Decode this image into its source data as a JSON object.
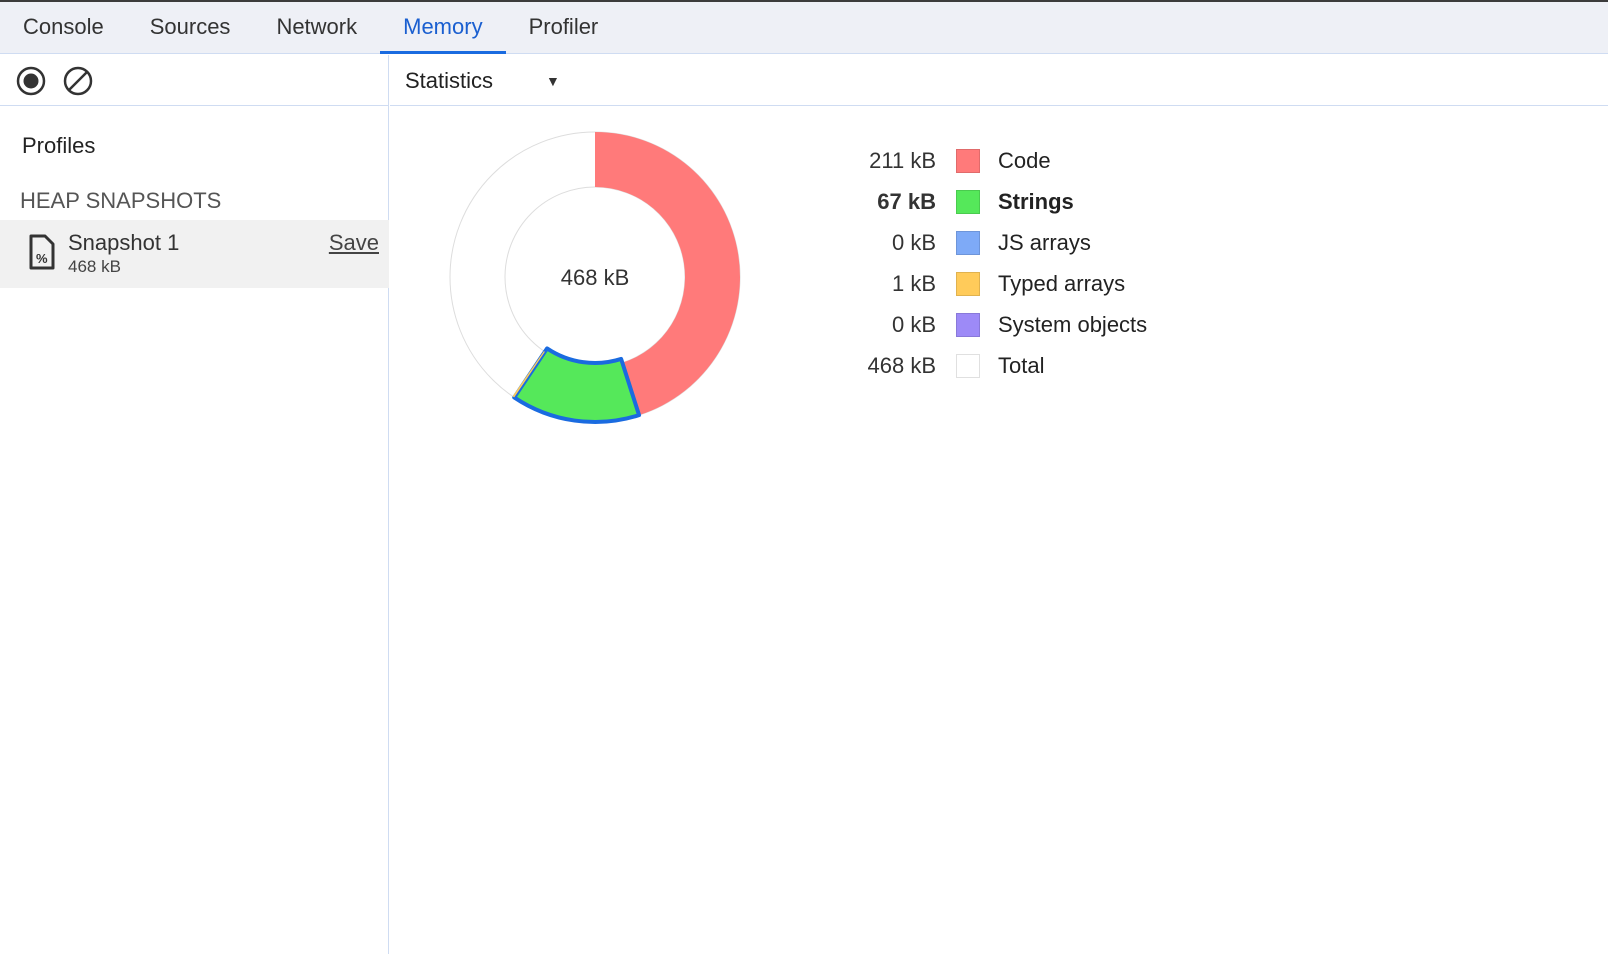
{
  "tabs": [
    {
      "label": "Console"
    },
    {
      "label": "Sources"
    },
    {
      "label": "Network"
    },
    {
      "label": "Memory",
      "active": true
    },
    {
      "label": "Profiler"
    }
  ],
  "toolbar": {
    "record_icon": "record-icon",
    "clear_icon": "clear-icon"
  },
  "sidebar": {
    "profiles_label": "Profiles",
    "section": "HEAP SNAPSHOTS",
    "snapshot": {
      "name": "Snapshot 1",
      "size": "468 kB",
      "save": "Save",
      "icon": "heap-snapshot-file-icon"
    }
  },
  "view": {
    "selected": "Statistics"
  },
  "chart_data": {
    "type": "pie",
    "donut": true,
    "center_label": "468 kB",
    "total": 468,
    "unit": "kB",
    "highlighted": "Strings",
    "series": [
      {
        "name": "Code",
        "value": 211,
        "label": "211 kB",
        "color": "#ff7a7a"
      },
      {
        "name": "Strings",
        "value": 67,
        "label": "67 kB",
        "color": "#55e85a"
      },
      {
        "name": "JS arrays",
        "value": 0,
        "label": "0 kB",
        "color": "#7eaaf7"
      },
      {
        "name": "Typed arrays",
        "value": 1,
        "label": "1 kB",
        "color": "#ffcb5a"
      },
      {
        "name": "System objects",
        "value": 0,
        "label": "0 kB",
        "color": "#9d8af7"
      }
    ],
    "total_row": {
      "name": "Total",
      "label": "468 kB",
      "color": "#ffffff"
    },
    "highlight_color": "#1a6be0"
  }
}
